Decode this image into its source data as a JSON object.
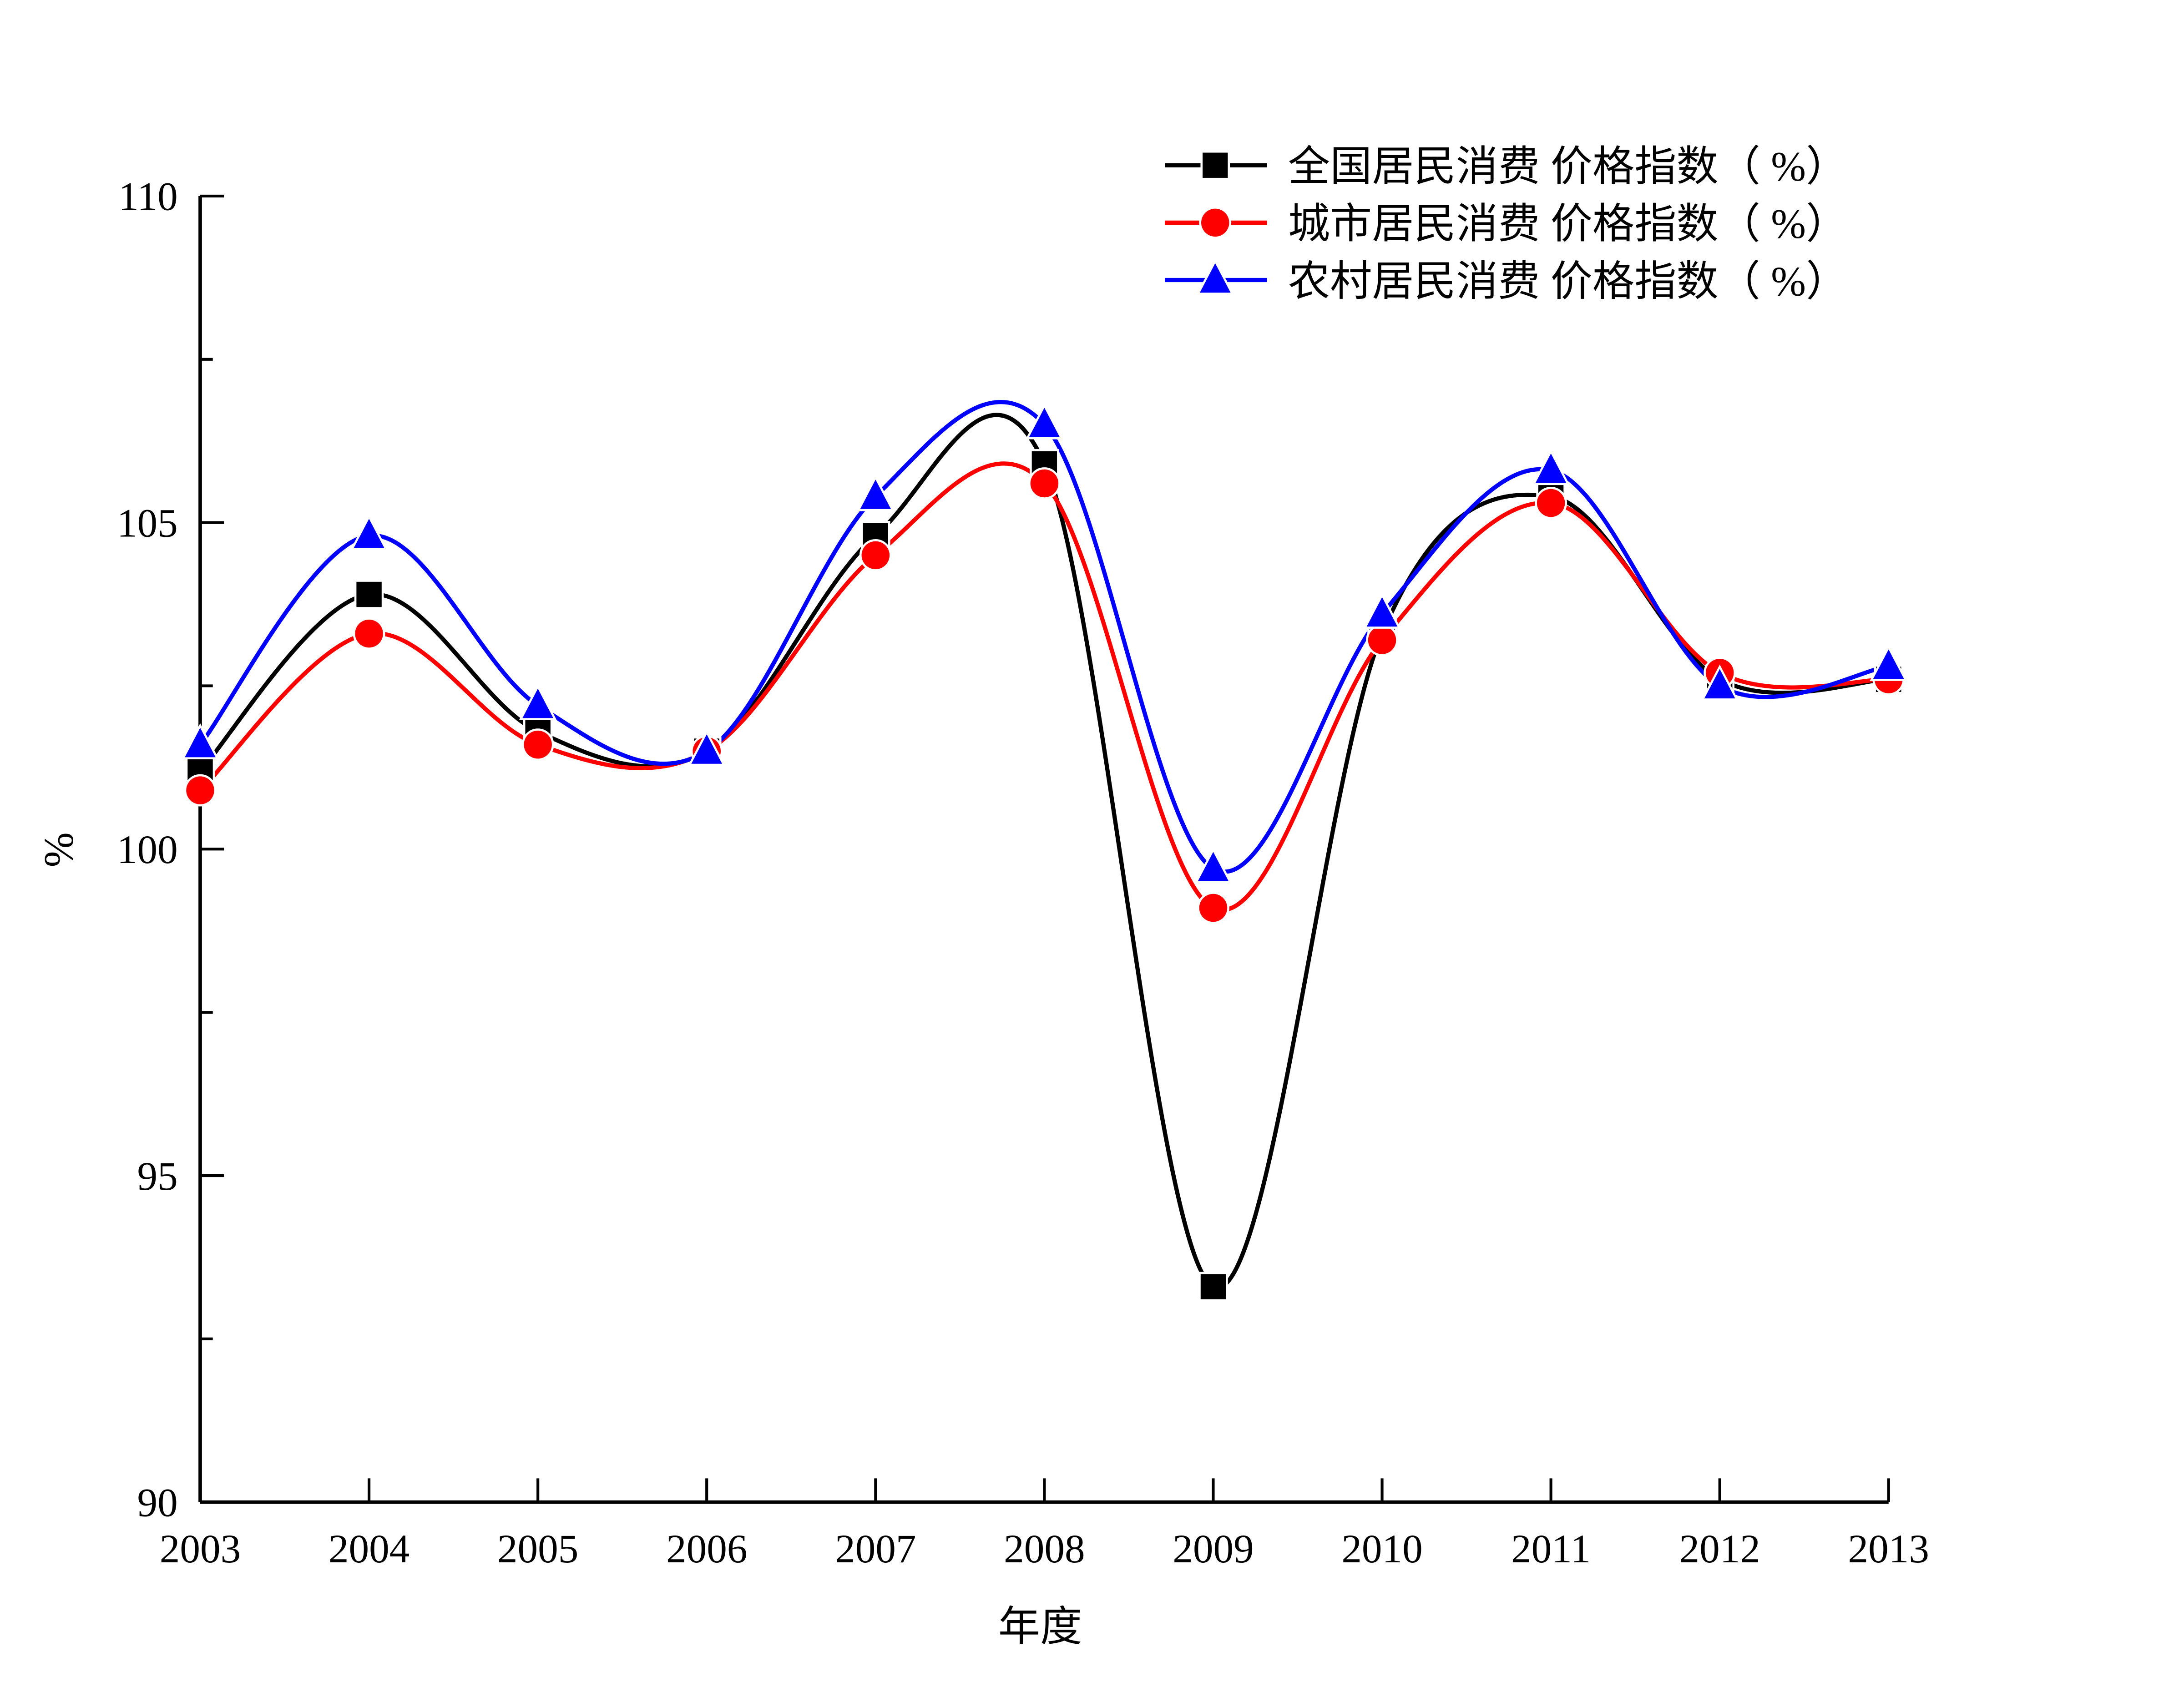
{
  "chart_data": {
    "type": "line",
    "title": "",
    "xlabel": "年度",
    "ylabel": "%",
    "x": [
      2003,
      2004,
      2005,
      2006,
      2007,
      2008,
      2009,
      2010,
      2011,
      2012,
      2013
    ],
    "xtick_labels": [
      "2003",
      "2004",
      "2005",
      "2006",
      "2007",
      "2008",
      "2009",
      "2010",
      "2011",
      "2012",
      "2013"
    ],
    "ytick_labels": [
      "90",
      "95",
      "100",
      "105",
      "110"
    ],
    "ytick_values": [
      90,
      95,
      100,
      105,
      110
    ],
    "xlim": [
      2003,
      2013
    ],
    "ylim": [
      90,
      110
    ],
    "grid": false,
    "smoothed": true,
    "legend_position": "top-right",
    "series": [
      {
        "name": "全国居民消费 价格指数（ %）",
        "color": "#000000",
        "marker": "square",
        "values": [
          101.2,
          103.9,
          101.8,
          101.5,
          104.8,
          105.9,
          93.3,
          103.3,
          105.4,
          102.6,
          102.6
        ]
      },
      {
        "name": "城市居民消费 价格指数（ %）",
        "color": "#ff0000",
        "marker": "circle",
        "values": [
          100.9,
          103.3,
          101.6,
          101.5,
          104.5,
          105.6,
          99.1,
          103.2,
          105.3,
          102.7,
          102.6
        ]
      },
      {
        "name": "农村居民消费 价格指数（ %）",
        "color": "#0000ff",
        "marker": "triangle",
        "values": [
          101.6,
          104.8,
          102.2,
          101.5,
          105.4,
          106.5,
          99.7,
          103.6,
          105.8,
          102.5,
          102.8
        ]
      }
    ]
  }
}
